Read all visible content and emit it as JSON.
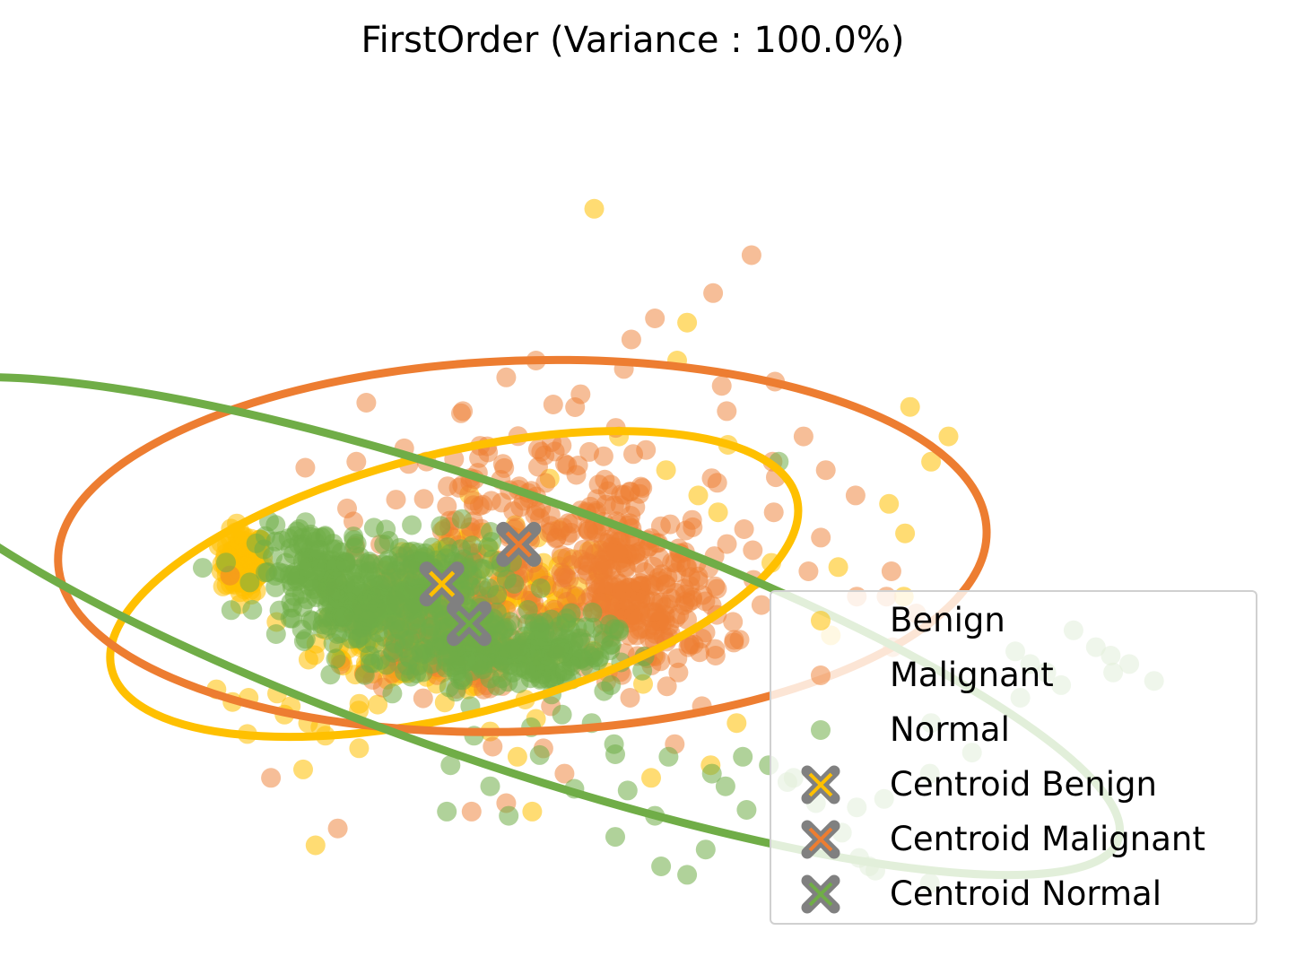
{
  "chart_data": {
    "type": "scatter",
    "title": "FirstOrder (Variance : 100.0%)",
    "xlabel": "",
    "ylabel": "",
    "axes_visible": false,
    "grid": false,
    "legend_position": "lower-right",
    "xlim": [
      0,
      100
    ],
    "ylim": [
      0,
      100
    ],
    "series": [
      {
        "name": "Benign",
        "kind": "points",
        "color": "#ffc000",
        "alpha": 0.55,
        "points": [
          [
            45.8,
            88
          ],
          [
            53.3,
            74.5
          ],
          [
            52.5,
            70
          ],
          [
            71.3,
            64.5
          ],
          [
            74.4,
            61
          ],
          [
            73,
            58
          ],
          [
            69.6,
            53
          ],
          [
            70.9,
            49.5
          ],
          [
            70.8,
            42
          ],
          [
            65.5,
            45.5
          ],
          [
            64.9,
            37.4
          ],
          [
            23.3,
            12.5
          ],
          [
            15.3,
            31
          ],
          [
            17.9,
            30
          ],
          [
            16.6,
            29.5
          ],
          [
            20.8,
            28
          ],
          [
            23.7,
            26.5
          ],
          [
            21.3,
            29
          ],
          [
            24.1,
            25.5
          ],
          [
            22.7,
            27
          ],
          [
            20.2,
            30.5
          ],
          [
            22.3,
            21.5
          ],
          [
            17.8,
            25.7
          ],
          [
            39.6,
            23
          ],
          [
            37.4,
            26
          ],
          [
            41.1,
            27.5
          ],
          [
            46.9,
            33
          ],
          [
            50.6,
            35
          ],
          [
            47.8,
            61
          ],
          [
            51.6,
            57
          ],
          [
            55.8,
            52
          ],
          [
            60.1,
            46
          ],
          [
            54.2,
            54
          ],
          [
            56.6,
            60
          ],
          [
            57.3,
            27
          ],
          [
            55.2,
            22
          ],
          [
            50.4,
            20.5
          ],
          [
            40.8,
            16.5
          ],
          [
            26.9,
            36
          ],
          [
            29.1,
            40
          ],
          [
            31.2,
            37
          ],
          [
            38.2,
            39
          ],
          [
            35.6,
            31
          ],
          [
            30.7,
            33
          ],
          [
            43.5,
            42
          ],
          [
            46.1,
            45
          ],
          [
            39.8,
            47
          ],
          [
            42.2,
            56
          ],
          [
            33.7,
            50
          ]
        ],
        "clusters": [
          [
            17.5,
            46,
            1.6,
            3.4
          ],
          [
            30.5,
            38,
            6.5,
            7.5
          ],
          [
            38,
            41.5,
            9.5,
            7
          ]
        ]
      },
      {
        "name": "Malignant",
        "kind": "points",
        "color": "#ed7d31",
        "alpha": 0.5,
        "points": [
          [
            58.5,
            82.5
          ],
          [
            55.4,
            78
          ],
          [
            50.7,
            75
          ],
          [
            48.8,
            72.5
          ],
          [
            41.1,
            70
          ],
          [
            44.7,
            66
          ],
          [
            38.7,
            68
          ],
          [
            35.2,
            64
          ],
          [
            48.2,
            69
          ],
          [
            56.1,
            67
          ],
          [
            56.5,
            64
          ],
          [
            62.7,
            61
          ],
          [
            60.2,
            58
          ],
          [
            64.5,
            57
          ],
          [
            66.9,
            54
          ],
          [
            64.1,
            49
          ],
          [
            63.1,
            45
          ],
          [
            67,
            42
          ],
          [
            69.4,
            42
          ],
          [
            71.8,
            40
          ],
          [
            69.8,
            45
          ],
          [
            59.3,
            41
          ],
          [
            57,
            39
          ],
          [
            55.6,
            35
          ],
          [
            52.6,
            33
          ],
          [
            48.7,
            30
          ],
          [
            42.3,
            29
          ],
          [
            41.7,
            24
          ],
          [
            43.4,
            21
          ],
          [
            38.7,
            17.5
          ],
          [
            35.9,
            16.5
          ],
          [
            25.1,
            14.5
          ],
          [
            19.7,
            20.5
          ],
          [
            27.4,
            65
          ],
          [
            26.6,
            58
          ],
          [
            29.8,
            53.5
          ],
          [
            26.5,
            48
          ],
          [
            16.4,
            44.5
          ],
          [
            69.9,
            36
          ],
          [
            57.9,
            50
          ],
          [
            60.3,
            52
          ],
          [
            58.6,
            47.5
          ],
          [
            52.3,
            24.5
          ],
          [
            54.5,
            29
          ],
          [
            53.4,
            36
          ],
          [
            60.4,
            67.5
          ],
          [
            37.6,
            24.2
          ]
        ],
        "clusters": [
          [
            40.5,
            52,
            11.5,
            9.5
          ],
          [
            47.5,
            46,
            7,
            9
          ],
          [
            33.5,
            38.5,
            6,
            7
          ],
          [
            50,
            40,
            6,
            6
          ]
        ]
      },
      {
        "name": "Normal",
        "kind": "points",
        "color": "#70ad47",
        "alpha": 0.55,
        "points": [
          [
            60.7,
            58
          ],
          [
            84.5,
            38
          ],
          [
            87.7,
            33
          ],
          [
            91,
            32
          ],
          [
            80.2,
            30
          ],
          [
            76.3,
            23.5
          ],
          [
            73,
            27
          ],
          [
            72.9,
            21
          ],
          [
            69.2,
            18
          ],
          [
            67,
            17
          ],
          [
            59.9,
            22
          ],
          [
            61.9,
            20.5
          ],
          [
            63.7,
            17.5
          ],
          [
            65.8,
            14
          ],
          [
            67.2,
            11
          ],
          [
            68.5,
            9.5
          ],
          [
            72.9,
            8
          ],
          [
            68,
            10
          ],
          [
            61.4,
            20
          ],
          [
            56.4,
            19.5
          ],
          [
            55.3,
            21
          ],
          [
            57.8,
            23
          ],
          [
            58.1,
            16.7
          ],
          [
            53.3,
            9
          ],
          [
            51.2,
            10
          ],
          [
            54.8,
            12
          ],
          [
            48.5,
            19
          ],
          [
            50.7,
            16
          ],
          [
            47.5,
            13.5
          ],
          [
            51.8,
            23
          ],
          [
            47.4,
            24.5
          ],
          [
            41.4,
            23.2
          ],
          [
            38.9,
            16
          ],
          [
            37.4,
            19.5
          ],
          [
            33.9,
            16.5
          ],
          [
            36.1,
            25.5
          ],
          [
            35.8,
            29
          ],
          [
            29.5,
            30.5
          ],
          [
            31,
            32.5
          ],
          [
            27.7,
            35
          ],
          [
            26.7,
            37
          ],
          [
            28.4,
            39.5
          ],
          [
            34.2,
            22
          ],
          [
            40.7,
            26.5
          ],
          [
            43.2,
            28
          ],
          [
            45.6,
            27
          ],
          [
            47.5,
            23.3
          ],
          [
            44.2,
            19.2
          ],
          [
            86.3,
            36
          ],
          [
            87.5,
            35
          ],
          [
            89,
            34
          ],
          [
            83.5,
            31.5
          ],
          [
            82.3,
            33
          ],
          [
            81,
            34
          ],
          [
            79.8,
            35.5
          ]
        ],
        "clusters": [
          [
            23.5,
            45,
            4.5,
            4.8
          ],
          [
            28,
            40,
            5,
            4.5
          ],
          [
            32.5,
            44,
            5.5,
            4.5
          ],
          [
            42,
            35.5,
            5,
            4
          ],
          [
            35.5,
            36,
            4.5,
            4
          ]
        ]
      },
      {
        "name": "Centroid Benign",
        "kind": "centroid",
        "color": "#ffc000",
        "x": 33.5,
        "y": 43.5
      },
      {
        "name": "Centroid Malignant",
        "kind": "centroid",
        "color": "#ed7d31",
        "x": 39.7,
        "y": 48.2
      },
      {
        "name": "Centroid Normal",
        "kind": "centroid",
        "color": "#70ad47",
        "x": 35.7,
        "y": 38.8
      }
    ],
    "ellipses": [
      {
        "series": "Benign",
        "cx": 34.5,
        "cy": 43.5,
        "rx": 28.5,
        "ry": 15.5,
        "angle": 14,
        "color": "#ffc000"
      },
      {
        "series": "Malignant",
        "cx": 40,
        "cy": 48,
        "rx": 37.5,
        "ry": 22,
        "angle": 2,
        "color": "#ed7d31"
      },
      {
        "series": "Normal",
        "cx": 38,
        "cy": 38.5,
        "rx": 53,
        "ry": 16,
        "angle": -19,
        "color": "#70ad47"
      }
    ],
    "legend": [
      "Benign",
      "Malignant",
      "Normal",
      "Centroid Benign",
      "Centroid Malignant",
      "Centroid Normal"
    ]
  }
}
